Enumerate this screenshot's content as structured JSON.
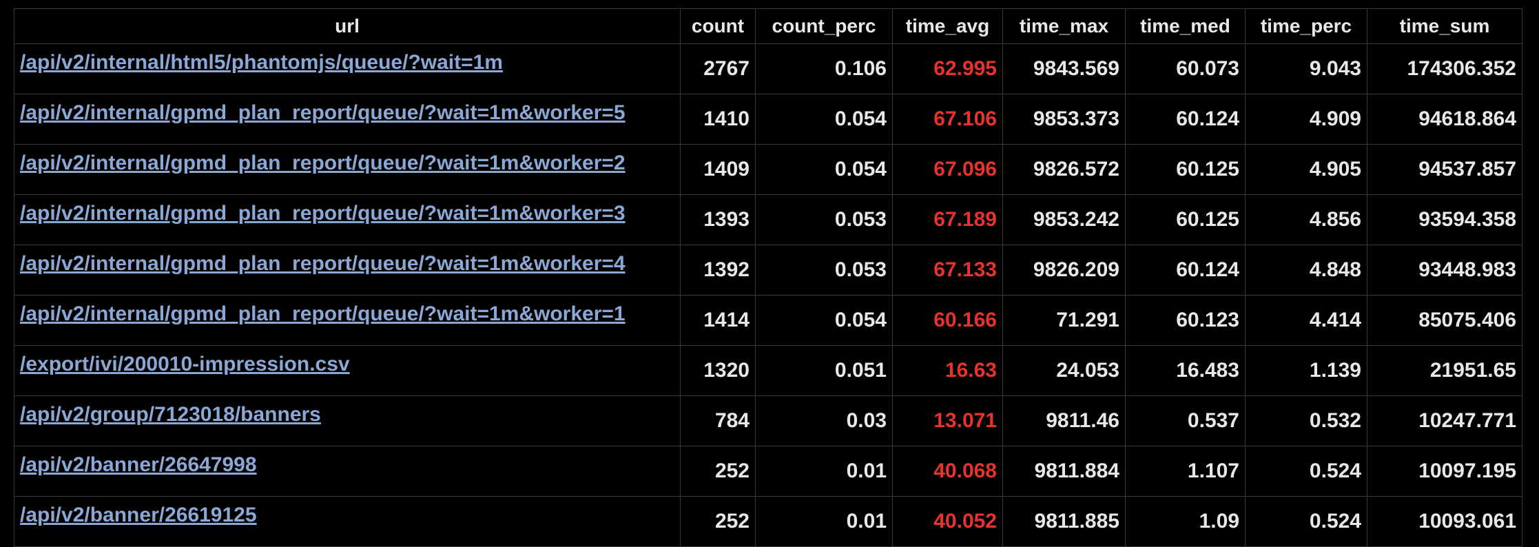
{
  "table": {
    "columns": [
      "url",
      "count",
      "count_perc",
      "time_avg",
      "time_max",
      "time_med",
      "time_perc",
      "time_sum"
    ],
    "highlight_column": "time_avg",
    "highlight_color": "#e8322c",
    "link_color": "#8ba7d6",
    "rows": [
      {
        "url": "/api/v2/internal/html5/phantomjs/queue/?wait=1m",
        "count": "2767",
        "count_perc": "0.106",
        "time_avg": "62.995",
        "time_max": "9843.569",
        "time_med": "60.073",
        "time_perc": "9.043",
        "time_sum": "174306.352"
      },
      {
        "url": "/api/v2/internal/gpmd_plan_report/queue/?wait=1m&worker=5",
        "count": "1410",
        "count_perc": "0.054",
        "time_avg": "67.106",
        "time_max": "9853.373",
        "time_med": "60.124",
        "time_perc": "4.909",
        "time_sum": "94618.864"
      },
      {
        "url": "/api/v2/internal/gpmd_plan_report/queue/?wait=1m&worker=2",
        "count": "1409",
        "count_perc": "0.054",
        "time_avg": "67.096",
        "time_max": "9826.572",
        "time_med": "60.125",
        "time_perc": "4.905",
        "time_sum": "94537.857"
      },
      {
        "url": "/api/v2/internal/gpmd_plan_report/queue/?wait=1m&worker=3",
        "count": "1393",
        "count_perc": "0.053",
        "time_avg": "67.189",
        "time_max": "9853.242",
        "time_med": "60.125",
        "time_perc": "4.856",
        "time_sum": "93594.358"
      },
      {
        "url": "/api/v2/internal/gpmd_plan_report/queue/?wait=1m&worker=4",
        "count": "1392",
        "count_perc": "0.053",
        "time_avg": "67.133",
        "time_max": "9826.209",
        "time_med": "60.124",
        "time_perc": "4.848",
        "time_sum": "93448.983"
      },
      {
        "url": "/api/v2/internal/gpmd_plan_report/queue/?wait=1m&worker=1",
        "count": "1414",
        "count_perc": "0.054",
        "time_avg": "60.166",
        "time_max": "71.291",
        "time_med": "60.123",
        "time_perc": "4.414",
        "time_sum": "85075.406"
      },
      {
        "url": "/export/ivi/200010-impression.csv",
        "count": "1320",
        "count_perc": "0.051",
        "time_avg": "16.63",
        "time_max": "24.053",
        "time_med": "16.483",
        "time_perc": "1.139",
        "time_sum": "21951.65"
      },
      {
        "url": "/api/v2/group/7123018/banners",
        "count": "784",
        "count_perc": "0.03",
        "time_avg": "13.071",
        "time_max": "9811.46",
        "time_med": "0.537",
        "time_perc": "0.532",
        "time_sum": "10247.771"
      },
      {
        "url": "/api/v2/banner/26647998",
        "count": "252",
        "count_perc": "0.01",
        "time_avg": "40.068",
        "time_max": "9811.884",
        "time_med": "1.107",
        "time_perc": "0.524",
        "time_sum": "10097.195"
      },
      {
        "url": "/api/v2/banner/26619125",
        "count": "252",
        "count_perc": "0.01",
        "time_avg": "40.052",
        "time_max": "9811.885",
        "time_med": "1.09",
        "time_perc": "0.524",
        "time_sum": "10093.061"
      }
    ]
  }
}
